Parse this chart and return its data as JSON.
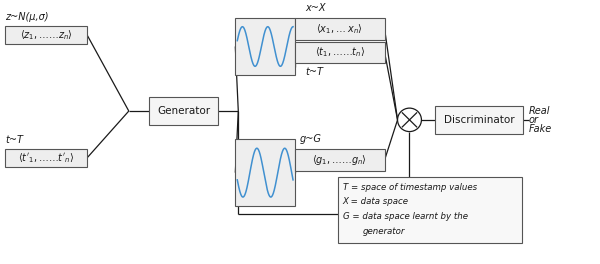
{
  "bg_color": "#ffffff",
  "line_color": "#1a1a1a",
  "wave_color": "#4090d0",
  "fig_w": 6.0,
  "fig_h": 2.64,
  "dpi": 100,
  "z_label": "z~N(μ,σ)",
  "t_label": "t~T",
  "generator_label": "Generator",
  "x_top_label": "x~X",
  "t_bottom_label": "t~T",
  "g_label": "g~G",
  "discriminator_label": "Discriminator",
  "real_label": "Real",
  "or_label": "or",
  "fake_label": "Fake",
  "leg1": "T = space of timestamp values",
  "leg2": "X = data space",
  "leg3": "G = data space learnt by the",
  "leg4": "    generator"
}
